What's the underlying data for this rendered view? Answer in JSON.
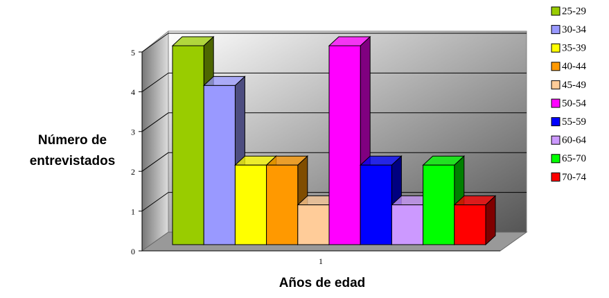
{
  "chart_data": {
    "type": "bar3d",
    "categories": [
      "1"
    ],
    "xlabel": "Años de edad",
    "ylabel": "Número de entrevistados",
    "ylim": [
      0,
      5
    ],
    "yticks": [
      0,
      1,
      2,
      3,
      4,
      5
    ],
    "grid": true,
    "legend": "right",
    "series": [
      {
        "name": "25-29",
        "color": "#99cc00",
        "values": [
          5
        ]
      },
      {
        "name": "30-34",
        "color": "#9999ff",
        "values": [
          4
        ]
      },
      {
        "name": "35-39",
        "color": "#ffff00",
        "values": [
          2
        ]
      },
      {
        "name": "40-44",
        "color": "#ff9900",
        "values": [
          2
        ]
      },
      {
        "name": "45-49",
        "color": "#ffcc99",
        "values": [
          1
        ]
      },
      {
        "name": "50-54",
        "color": "#ff00ff",
        "values": [
          5
        ]
      },
      {
        "name": "55-59",
        "color": "#0000ff",
        "values": [
          2
        ]
      },
      {
        "name": "60-64",
        "color": "#cc99ff",
        "values": [
          1
        ]
      },
      {
        "name": "65-70",
        "color": "#00ff00",
        "values": [
          2
        ]
      },
      {
        "name": "70-74",
        "color": "#ff0000",
        "values": [
          1
        ]
      }
    ]
  }
}
